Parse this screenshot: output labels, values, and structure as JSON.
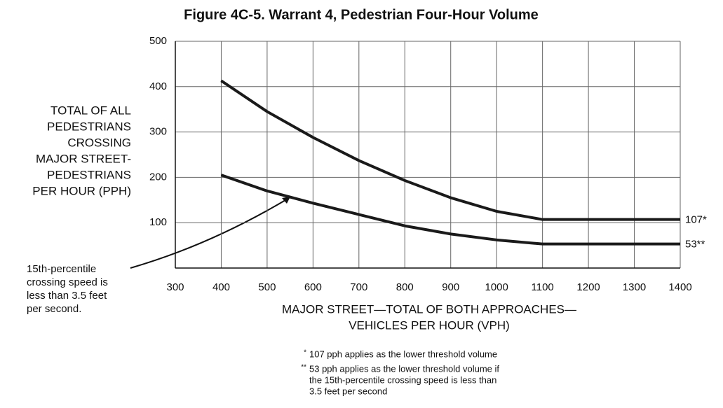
{
  "chart_data": {
    "type": "line",
    "title": "Figure 4C-5.  Warrant 4, Pedestrian Four-Hour Volume",
    "y_label_lines": [
      "TOTAL OF ALL",
      "PEDESTRIANS",
      "CROSSING",
      "MAJOR STREET-",
      "PEDESTRIANS",
      "PER HOUR (PPH)"
    ],
    "x_label_lines": [
      "MAJOR STREET—TOTAL OF BOTH APPROACHES—",
      "VEHICLES PER HOUR (VPH)"
    ],
    "x": [
      400,
      500,
      600,
      700,
      800,
      900,
      1000,
      1100,
      1400
    ],
    "series": [
      {
        "color": "#1a1a1a",
        "values": [
          413,
          345,
          288,
          237,
          193,
          155,
          125,
          107,
          107
        ],
        "value_labels": [
          null,
          null,
          null,
          null,
          null,
          null,
          null,
          null,
          "107*"
        ]
      },
      {
        "color": "#1a1a1a",
        "values": [
          205,
          170,
          143,
          118,
          93,
          75,
          62,
          53,
          53
        ],
        "value_labels": [
          null,
          null,
          null,
          null,
          null,
          null,
          null,
          null,
          "53**"
        ]
      }
    ],
    "xlim": [
      300,
      1400
    ],
    "xticks": [
      300,
      400,
      500,
      600,
      700,
      800,
      900,
      1000,
      1100,
      1200,
      1300,
      1400
    ],
    "ylim": [
      0,
      500
    ],
    "yticks": [
      100,
      200,
      300,
      400,
      500
    ],
    "grid": true,
    "annotation_lines": [
      "15th-percentile",
      "crossing speed is",
      "less than 3.5 feet",
      "per second."
    ],
    "footnotes": [
      {
        "marker": "*",
        "lines": [
          "107 pph applies as the lower threshold volume"
        ]
      },
      {
        "marker": "**",
        "lines": [
          "53 pph applies as the lower threshold volume if",
          "the 15th-percentile crossing speed is less than",
          "3.5 feet per second"
        ]
      }
    ]
  }
}
